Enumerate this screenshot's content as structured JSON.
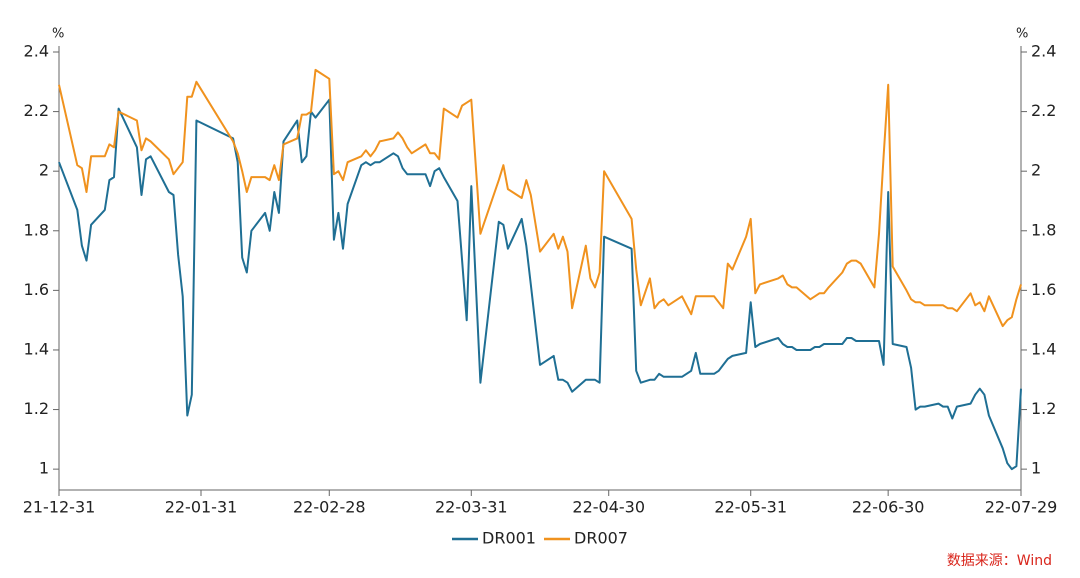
{
  "chart_data": {
    "type": "line",
    "y_unit": "%",
    "y2_unit": "%",
    "source": "数据来源：Wind",
    "x": [
      "21-12-31",
      "22-01-04",
      "22-01-05",
      "22-01-06",
      "22-01-07",
      "22-01-10",
      "22-01-11",
      "22-01-12",
      "22-01-13",
      "22-01-17",
      "22-01-18",
      "22-01-19",
      "22-01-20",
      "22-01-24",
      "22-01-25",
      "22-01-26",
      "22-01-27",
      "22-01-28",
      "22-01-29",
      "22-01-30",
      "22-02-07",
      "22-02-08",
      "22-02-09",
      "22-02-10",
      "22-02-11",
      "22-02-14",
      "22-02-15",
      "22-02-16",
      "22-02-17",
      "22-02-18",
      "22-02-21",
      "22-02-22",
      "22-02-23",
      "22-02-24",
      "22-02-25",
      "22-02-28",
      "22-03-01",
      "22-03-02",
      "22-03-03",
      "22-03-04",
      "22-03-07",
      "22-03-08",
      "22-03-09",
      "22-03-10",
      "22-03-11",
      "22-03-14",
      "22-03-15",
      "22-03-16",
      "22-03-17",
      "22-03-18",
      "22-03-21",
      "22-03-22",
      "22-03-23",
      "22-03-24",
      "22-03-25",
      "22-03-28",
      "22-03-29",
      "22-03-30",
      "22-03-31",
      "22-04-02",
      "22-04-06",
      "22-04-07",
      "22-04-08",
      "22-04-11",
      "22-04-12",
      "22-04-13",
      "22-04-15",
      "22-04-18",
      "22-04-19",
      "22-04-20",
      "22-04-21",
      "22-04-22",
      "22-04-25",
      "22-04-26",
      "22-04-27",
      "22-04-28",
      "22-04-29",
      "22-05-05",
      "22-05-06",
      "22-05-07",
      "22-05-09",
      "22-05-10",
      "22-05-11",
      "22-05-12",
      "22-05-13",
      "22-05-16",
      "22-05-17",
      "22-05-18",
      "22-05-19",
      "22-05-20",
      "22-05-23",
      "22-05-24",
      "22-05-25",
      "22-05-26",
      "22-05-27",
      "22-05-30",
      "22-05-31",
      "22-06-01",
      "22-06-02",
      "22-06-06",
      "22-06-07",
      "22-06-08",
      "22-06-09",
      "22-06-10",
      "22-06-13",
      "22-06-14",
      "22-06-15",
      "22-06-16",
      "22-06-17",
      "22-06-20",
      "22-06-21",
      "22-06-22",
      "22-06-23",
      "22-06-24",
      "22-06-27",
      "22-06-28",
      "22-06-29",
      "22-06-30",
      "22-07-01",
      "22-07-04",
      "22-07-05",
      "22-07-06",
      "22-07-07",
      "22-07-08",
      "22-07-11",
      "22-07-12",
      "22-07-13",
      "22-07-14",
      "22-07-15",
      "22-07-18",
      "22-07-19",
      "22-07-20",
      "22-07-21",
      "22-07-22",
      "22-07-25",
      "22-07-26",
      "22-07-27",
      "22-07-28",
      "22-07-29"
    ],
    "series": [
      {
        "name": "DR001",
        "color": "#1f6f94",
        "values": [
          2.03,
          1.87,
          1.75,
          1.7,
          1.82,
          1.87,
          1.97,
          1.98,
          2.21,
          2.08,
          1.92,
          2.04,
          2.05,
          1.93,
          1.92,
          1.72,
          1.58,
          1.18,
          1.25,
          2.17,
          2.11,
          2.03,
          1.71,
          1.66,
          1.8,
          1.86,
          1.8,
          1.93,
          1.86,
          2.1,
          2.17,
          2.03,
          2.05,
          2.2,
          2.18,
          2.24,
          1.77,
          1.86,
          1.74,
          1.89,
          2.02,
          2.03,
          2.02,
          2.03,
          2.03,
          2.06,
          2.05,
          2.01,
          1.99,
          1.99,
          1.99,
          1.95,
          2.0,
          2.01,
          1.98,
          1.9,
          1.7,
          1.5,
          1.95,
          1.29,
          1.83,
          1.82,
          1.74,
          1.84,
          1.75,
          1.62,
          1.35,
          1.38,
          1.3,
          1.3,
          1.29,
          1.26,
          1.3,
          1.3,
          1.3,
          1.29,
          1.78,
          1.74,
          1.33,
          1.29,
          1.3,
          1.3,
          1.32,
          1.31,
          1.31,
          1.31,
          1.32,
          1.33,
          1.39,
          1.32,
          1.32,
          1.33,
          1.35,
          1.37,
          1.38,
          1.39,
          1.56,
          1.41,
          1.42,
          1.44,
          1.42,
          1.41,
          1.41,
          1.4,
          1.4,
          1.41,
          1.41,
          1.42,
          1.42,
          1.42,
          1.44,
          1.44,
          1.43,
          1.43,
          1.43,
          1.43,
          1.35,
          1.93,
          1.42,
          1.41,
          1.34,
          1.2,
          1.21,
          1.21,
          1.22,
          1.21,
          1.21,
          1.17,
          1.21,
          1.22,
          1.25,
          1.27,
          1.25,
          1.18,
          1.07,
          1.02,
          1.0,
          1.01,
          1.27
        ]
      },
      {
        "name": "DR007",
        "color": "#f0921e",
        "values": [
          2.29,
          2.02,
          2.01,
          1.93,
          2.05,
          2.05,
          2.09,
          2.08,
          2.2,
          2.17,
          2.07,
          2.11,
          2.1,
          2.04,
          1.99,
          2.01,
          2.03,
          2.25,
          2.25,
          2.3,
          2.1,
          2.06,
          2.0,
          1.93,
          1.98,
          1.98,
          1.97,
          2.02,
          1.97,
          2.09,
          2.11,
          2.19,
          2.19,
          2.2,
          2.34,
          2.31,
          1.99,
          2.0,
          1.97,
          2.03,
          2.05,
          2.07,
          2.05,
          2.07,
          2.1,
          2.11,
          2.13,
          2.11,
          2.08,
          2.06,
          2.09,
          2.06,
          2.06,
          2.04,
          2.21,
          2.18,
          2.22,
          2.23,
          2.24,
          1.79,
          1.97,
          2.02,
          1.94,
          1.91,
          1.97,
          1.92,
          1.73,
          1.79,
          1.74,
          1.78,
          1.73,
          1.54,
          1.75,
          1.64,
          1.61,
          1.66,
          2.0,
          1.84,
          1.67,
          1.55,
          1.64,
          1.54,
          1.56,
          1.57,
          1.55,
          1.58,
          1.55,
          1.52,
          1.58,
          1.58,
          1.58,
          1.56,
          1.54,
          1.69,
          1.67,
          1.78,
          1.84,
          1.59,
          1.62,
          1.64,
          1.65,
          1.62,
          1.61,
          1.61,
          1.57,
          1.58,
          1.59,
          1.59,
          1.61,
          1.66,
          1.69,
          1.7,
          1.7,
          1.69,
          1.61,
          1.79,
          2.05,
          2.29,
          1.68,
          1.6,
          1.57,
          1.56,
          1.56,
          1.55,
          1.55,
          1.55,
          1.54,
          1.54,
          1.53,
          1.59,
          1.55,
          1.56,
          1.53,
          1.58,
          1.48,
          1.5,
          1.51,
          1.57,
          1.62
        ]
      }
    ],
    "xlim": [
      "21-12-31",
      "22-07-29"
    ],
    "xticks": [
      "21-12-31",
      "22-01-31",
      "22-02-28",
      "22-03-31",
      "22-04-30",
      "22-05-31",
      "22-06-30",
      "22-07-29"
    ],
    "ylim": [
      0.93,
      2.4
    ],
    "yticks": [
      1,
      1.2,
      1.4,
      1.6,
      1.8,
      2,
      2.2,
      2.4
    ],
    "y2lim": [
      0.93,
      2.4
    ],
    "y2ticks": [
      1,
      1.2,
      1.4,
      1.6,
      1.8,
      2,
      2.2,
      2.4
    ],
    "grid": false
  }
}
